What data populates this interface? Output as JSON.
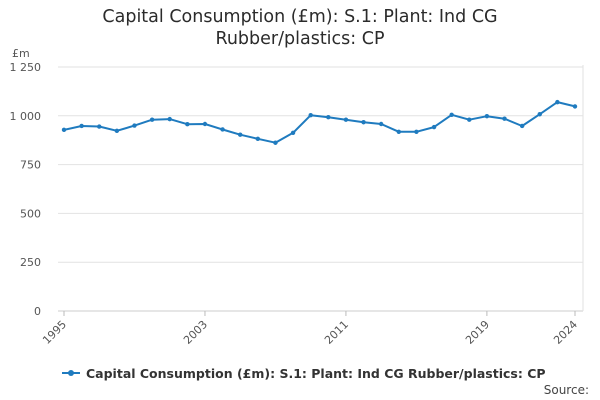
{
  "chart_data": {
    "type": "line",
    "title_lines": [
      "Capital Consumption (£m): S.1: Plant: Ind CG",
      "Rubber/plastics: CP"
    ],
    "title": "Capital Consumption (£m): S.1: Plant: Ind CG Rubber/plastics: CP",
    "ylabel": "£m",
    "xlabel": "",
    "ylim": [
      0,
      1250
    ],
    "xlim": [
      1995,
      2024
    ],
    "yticks": [
      0,
      250,
      500,
      750,
      1000,
      1250
    ],
    "ytick_labels": [
      "0",
      "250",
      "500",
      "750",
      "1 000",
      "1 250"
    ],
    "xticks": [
      1995,
      2003,
      2011,
      2019,
      2024
    ],
    "xtick_labels": [
      "1995",
      "2003",
      "2011",
      "2019",
      "2024"
    ],
    "grid": true,
    "legend_position": "bottom",
    "x": [
      1995,
      1996,
      1997,
      1998,
      1999,
      2000,
      2001,
      2002,
      2003,
      2004,
      2005,
      2006,
      2007,
      2008,
      2009,
      2010,
      2011,
      2012,
      2013,
      2014,
      2015,
      2016,
      2017,
      2018,
      2019,
      2020,
      2021,
      2022,
      2023,
      2024
    ],
    "series": [
      {
        "name": "Capital Consumption (£m): S.1: Plant: Ind CG Rubber/plastics: CP",
        "color": "#1f7bbf",
        "values": [
          928,
          948,
          945,
          923,
          950,
          980,
          983,
          957,
          958,
          930,
          903,
          882,
          862,
          913,
          1003,
          993,
          980,
          967,
          958,
          918,
          918,
          942,
          1005,
          980,
          998,
          985,
          948,
          1008,
          1070,
          1048
        ]
      }
    ]
  },
  "footer": {
    "source_label": "Source:"
  }
}
